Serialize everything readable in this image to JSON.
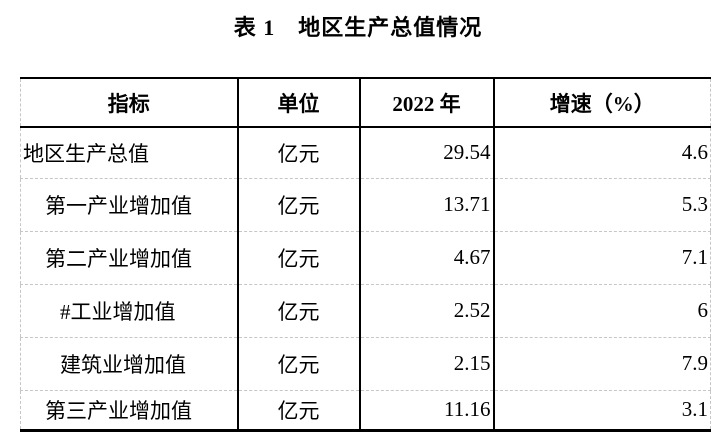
{
  "title": "表 1　地区生产总值情况",
  "colors": {
    "background": "#ffffff",
    "text": "#000000",
    "solid_border": "#000000",
    "dashed_gridline": "#c6c6c6"
  },
  "table": {
    "headers": [
      "指标",
      "单位",
      "2022 年",
      "增速（%）"
    ],
    "rows": [
      {
        "indicator": "地区生产总值",
        "unit": "亿元",
        "value_2022": "29.54",
        "growth": "4.6",
        "indent": 0
      },
      {
        "indicator": "第一产业增加值",
        "unit": "亿元",
        "value_2022": "13.71",
        "growth": "5.3",
        "indent": 1
      },
      {
        "indicator": "第二产业增加值",
        "unit": "亿元",
        "value_2022": "4.67",
        "growth": "7.1",
        "indent": 1
      },
      {
        "indicator": "#工业增加值",
        "unit": "亿元",
        "value_2022": "2.52",
        "growth": "6",
        "indent": 2
      },
      {
        "indicator": "建筑业增加值",
        "unit": "亿元",
        "value_2022": "2.15",
        "growth": "7.9",
        "indent": 2
      },
      {
        "indicator": "第三产业增加值",
        "unit": "亿元",
        "value_2022": "11.16",
        "growth": "3.1",
        "indent": 1
      }
    ]
  }
}
